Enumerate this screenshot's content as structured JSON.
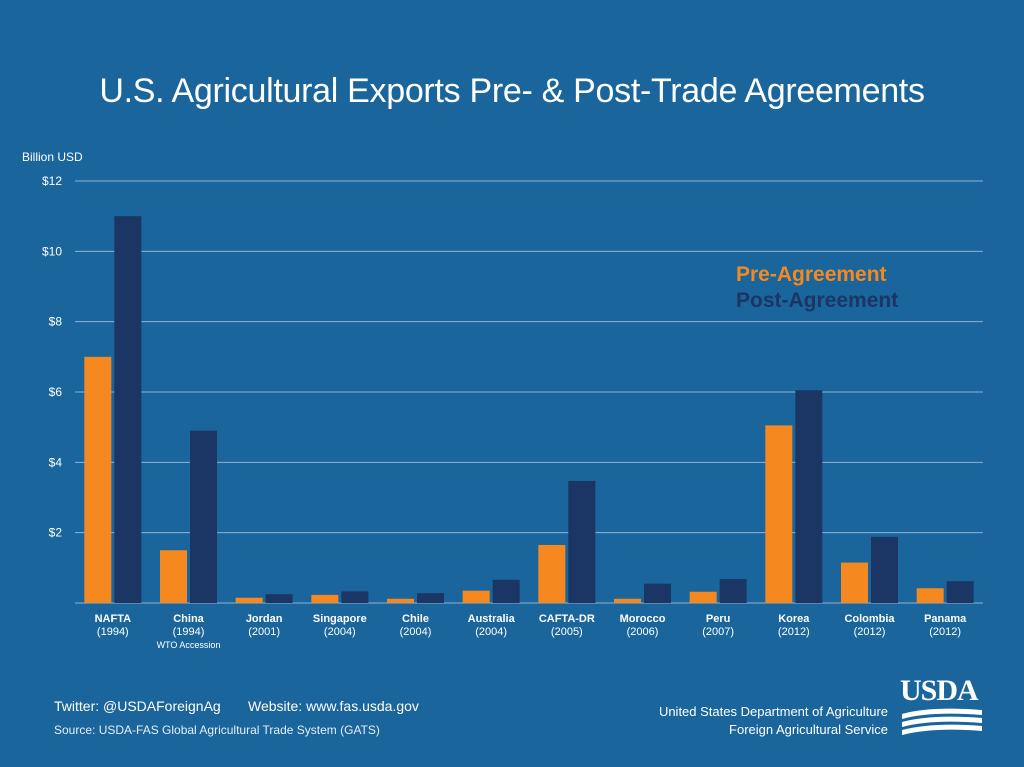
{
  "chart_data": {
    "type": "bar",
    "title": "U.S. Agricultural Exports Pre- & Post-Trade  Agreements",
    "ylabel": "Billion USD",
    "xlabel": "",
    "ylim": [
      0,
      12
    ],
    "yticks": [
      {
        "value": 2,
        "label": "$2"
      },
      {
        "value": 4,
        "label": "$4"
      },
      {
        "value": 6,
        "label": "$6"
      },
      {
        "value": 8,
        "label": "$8"
      },
      {
        "value": 10,
        "label": "$10"
      },
      {
        "value": 12,
        "label": "$12"
      }
    ],
    "categories": [
      "NAFTA",
      "China",
      "Jordan",
      "Singapore",
      "Chile",
      "Australia",
      "CAFTA-DR",
      "Morocco",
      "Peru",
      "Korea",
      "Colombia",
      "Panama"
    ],
    "category_years": [
      "(1994)",
      "(1994)",
      "(2001)",
      "(2004)",
      "(2004)",
      "(2004)",
      "(2005)",
      "(2006)",
      "(2007)",
      "(2012)",
      "(2012)",
      "(2012)"
    ],
    "category_notes": [
      "",
      "WTO Accession",
      "",
      "",
      "",
      "",
      "",
      "",
      "",
      "",
      "",
      ""
    ],
    "series": [
      {
        "name": "Pre-Agreement",
        "color": "#f5891f",
        "values": [
          7.0,
          1.5,
          0.15,
          0.23,
          0.12,
          0.35,
          1.65,
          0.12,
          0.32,
          5.05,
          1.15,
          0.42
        ]
      },
      {
        "name": "Post-Agreement",
        "color": "#1b3664",
        "values": [
          11.0,
          4.9,
          0.25,
          0.33,
          0.28,
          0.66,
          3.47,
          0.55,
          0.68,
          6.05,
          1.88,
          0.62
        ]
      }
    ],
    "legend": "top-right",
    "grid": true
  },
  "footer": {
    "twitter": "Twitter: @USDAForeignAg",
    "website": "Website: www.fas.usda.gov",
    "source": "Source: USDA-FAS Global Agricultural Trade System (GATS)",
    "department": "United States Department of Agriculture",
    "service": "Foreign Agricultural Service",
    "logo_text": "USDA"
  },
  "colors": {
    "background": "#1a659c",
    "gridline": "#8db4d3",
    "pre": "#f5891f",
    "post": "#1b3664"
  }
}
